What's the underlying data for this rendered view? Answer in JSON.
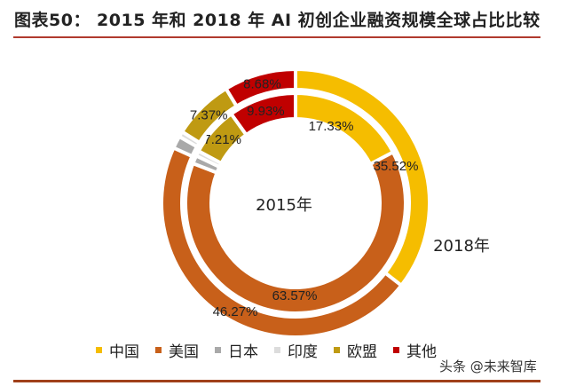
{
  "title": "图表50：  2015 年和 2018 年 AI 初创企业融资规模全球占比比较",
  "watermark": "头条 @未来智库",
  "chart_data": {
    "type": "pie",
    "subtype": "nested-donut",
    "title": "图表50：  2015 年和 2018 年 AI 初创企业融资规模全球占比比较",
    "categories": [
      "中国",
      "美国",
      "日本",
      "印度",
      "欧盟",
      "其他"
    ],
    "colors": [
      "#F5BD00",
      "#C8601A",
      "#A9A9A9",
      "#DCDCDC",
      "#BF9A12",
      "#C00000"
    ],
    "series": [
      {
        "name": "2015年",
        "ring": "inner",
        "values": [
          17.33,
          63.57,
          1.2,
          0.76,
          7.21,
          9.93
        ],
        "labels": [
          "17.33%",
          "63.57%",
          "",
          "",
          "7.21%",
          "9.93%"
        ]
      },
      {
        "name": "2018年",
        "ring": "outer",
        "values": [
          35.52,
          46.27,
          1.5,
          0.66,
          7.37,
          8.68
        ],
        "labels": [
          "35.52%",
          "46.27%",
          "",
          "",
          "7.37%",
          "8.68%"
        ]
      }
    ],
    "legend": "bottom"
  }
}
